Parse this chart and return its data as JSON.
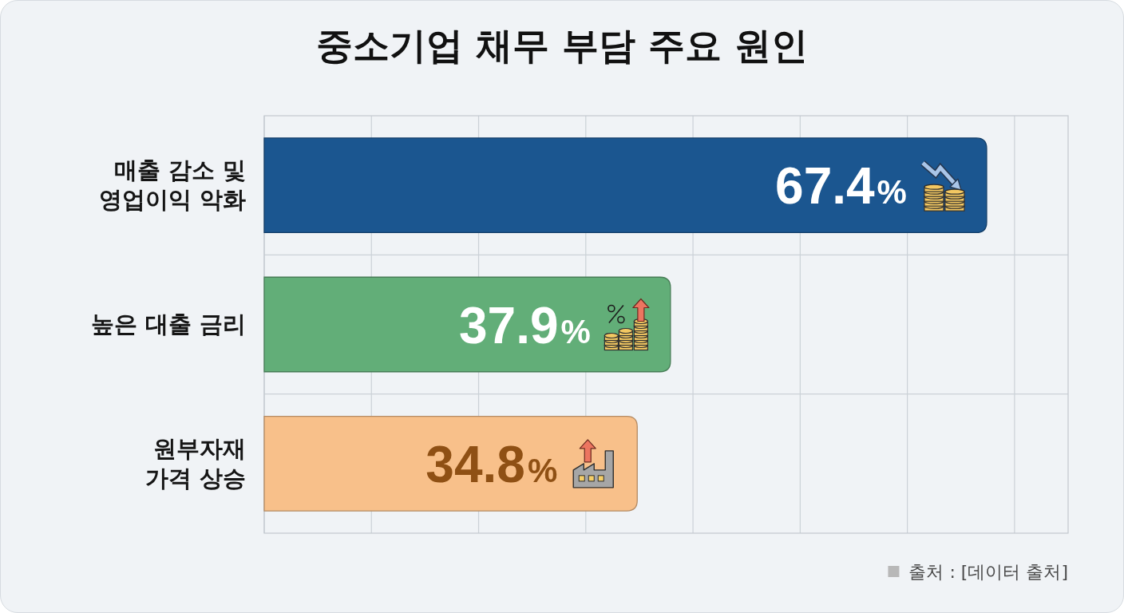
{
  "chart_data": {
    "type": "bar",
    "orientation": "horizontal",
    "title": "중소기업 채무 부담 주요 원인",
    "categories": [
      "매출 감소 및 영업이익 악화",
      "높은 대출 금리",
      "원부자재 가격 상승"
    ],
    "values": [
      67.4,
      37.9,
      34.8
    ],
    "colors": [
      "#1b5690",
      "#62ae78",
      "#f8c08a"
    ],
    "value_labels": [
      "67.4%",
      "37.9%",
      "34.8%"
    ],
    "xlim": [
      0,
      75
    ],
    "xticks": [
      {
        "value": 0,
        "label": null
      },
      {
        "value": 10,
        "label": null
      },
      {
        "value": 20,
        "label": null
      },
      {
        "value": 30,
        "label": null
      },
      {
        "value": 40,
        "label": null
      },
      {
        "value": 50,
        "label": null
      },
      {
        "value": 60,
        "label": null
      },
      {
        "value": 70,
        "label": null
      }
    ],
    "grid": true,
    "tick_labels": "y",
    "annotations": [
      "출처 : [데이터 출처]"
    ]
  }
}
